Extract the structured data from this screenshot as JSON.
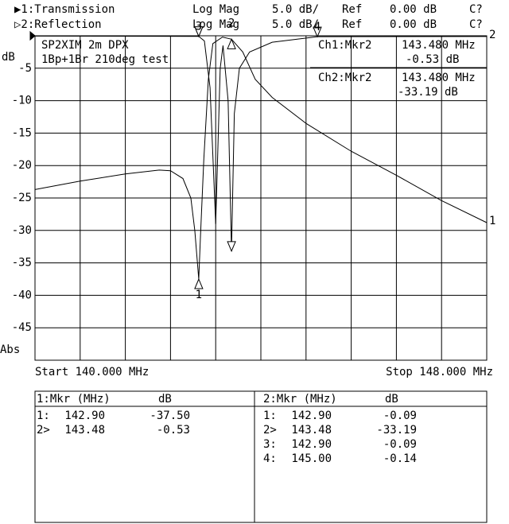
{
  "header": {
    "lines": [
      [
        "▶1:Transmission",
        "Log Mag",
        "5.0 dB/",
        "Ref",
        "0.00 dB",
        "C?"
      ],
      [
        "▷2:Reflection",
        "Log Mag",
        "5.0 dB/",
        "Ref",
        "0.00 dB",
        "C?"
      ]
    ]
  },
  "chart_data": {
    "type": "line",
    "y_unit": "dB",
    "y_format": "Abs",
    "start_label": "Start 140.000 MHz",
    "stop_label": "Stop 148.000 MHz",
    "xlim": [
      140,
      148
    ],
    "ylim": [
      -50,
      0
    ],
    "yticks": [
      -5,
      -10,
      -15,
      -20,
      -25,
      -30,
      -35,
      -40,
      -45
    ],
    "grid": true,
    "annotations": [
      "SP2XIM 2m DPX",
      "1Bp+1Br 210deg test",
      "Ch1:Mkr2",
      "143.480 MHz",
      "-0.53 dB",
      "Ch2:Mkr2",
      "143.480 MHz",
      "-33.19 dB"
    ],
    "series": [
      {
        "name": "Transmission",
        "end_label": "1",
        "color": "#000000",
        "x": [
          140,
          140.8,
          141.6,
          142.2,
          142.4,
          142.62,
          142.76,
          142.83,
          142.9,
          142.93,
          142.99,
          143.07,
          143.15,
          143.32,
          143.48,
          143.68,
          143.9,
          144.2,
          144.8,
          145.6,
          146.4,
          147.2,
          148
        ],
        "values": [
          -23.7,
          -22.4,
          -21.3,
          -20.7,
          -20.8,
          -22,
          -25,
          -30,
          -37.5,
          -31,
          -19,
          -6.7,
          -1.2,
          -0.2,
          -0.53,
          -2.5,
          -6.7,
          -9.5,
          -13.5,
          -17.8,
          -21.5,
          -25.4,
          -28.8
        ]
      },
      {
        "name": "Reflection",
        "end_label": "2",
        "color": "#000000",
        "x": [
          140,
          142.9,
          143.0,
          143.1,
          143.2,
          143.28,
          143.33,
          143.42,
          143.48,
          143.53,
          143.62,
          143.8,
          144.2,
          145.0,
          148
        ],
        "values": [
          -0.05,
          -0.09,
          -0.8,
          -8,
          -29,
          -5,
          -1.5,
          -10,
          -33.19,
          -12,
          -5,
          -2.5,
          -1,
          -0.14,
          -0.1
        ]
      }
    ],
    "marker_tables": [
      {
        "title": "1:Mkr (MHz)",
        "unit": "dB",
        "rows": [
          {
            "label": "1:",
            "tag": "1",
            "x": 142.9,
            "x_label": "142.90",
            "y": -37.5,
            "y_label": "-37.50"
          },
          {
            "label": "2>",
            "tag": "2",
            "x": 143.48,
            "x_label": "143.48",
            "y": -0.53,
            "y_label": "-0.53"
          }
        ]
      },
      {
        "title": "2:Mkr (MHz)",
        "unit": "dB",
        "rows": [
          {
            "label": "1:",
            "x": 142.9,
            "x_label": "142.90",
            "y": -0.09,
            "y_label": "-0.09"
          },
          {
            "label": "2>",
            "x": 143.48,
            "x_label": "143.48",
            "y": -33.19,
            "y_label": "-33.19"
          },
          {
            "label": "3:",
            "tag": "3",
            "x": 142.9,
            "x_label": "142.90",
            "y": -0.09,
            "y_label": "-0.09"
          },
          {
            "label": "4:",
            "tag": "4",
            "x": 145.0,
            "x_label": "145.00",
            "y": -0.14,
            "y_label": "-0.14"
          }
        ]
      }
    ]
  }
}
